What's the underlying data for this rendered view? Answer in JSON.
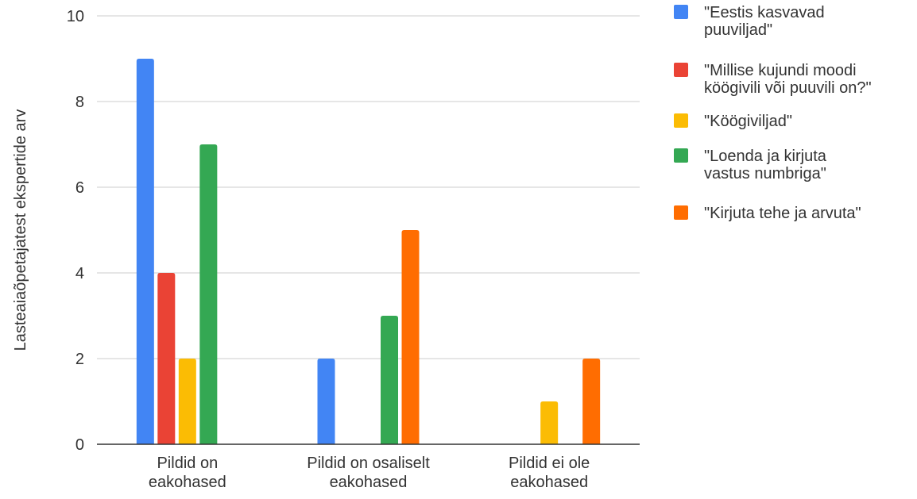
{
  "chart_data": {
    "type": "bar",
    "title": "",
    "xlabel": "",
    "ylabel": "Lasteaiaõpetajatest ekspertide arv",
    "ylim": [
      0,
      10
    ],
    "yticks": [
      0,
      2,
      4,
      6,
      8,
      10
    ],
    "grid": true,
    "legend_position": "right",
    "categories": [
      [
        "Pildid on",
        "eakohased"
      ],
      [
        "Pildid on osaliselt",
        "eakohased"
      ],
      [
        "Pildid ei ole",
        "eakohased"
      ]
    ],
    "series": [
      {
        "name": [
          "\"Eestis kasvavad",
          "puuviljad\""
        ],
        "color": "#4285f4",
        "values": [
          9,
          2,
          0
        ]
      },
      {
        "name": [
          "\"Millise kujundi moodi",
          "köögivili või puuvili on?\""
        ],
        "color": "#ea4335",
        "values": [
          4,
          0,
          0
        ]
      },
      {
        "name": [
          "\"Köögiviljad\""
        ],
        "color": "#fbbc04",
        "values": [
          2,
          0,
          1
        ]
      },
      {
        "name": [
          "\"Loenda ja kirjuta",
          "vastus numbriga\""
        ],
        "color": "#34a853",
        "values": [
          7,
          3,
          0
        ]
      },
      {
        "name": [
          "\"Kirjuta tehe ja arvuta\""
        ],
        "color": "#ff6d01",
        "values": [
          0,
          5,
          2
        ]
      }
    ]
  }
}
